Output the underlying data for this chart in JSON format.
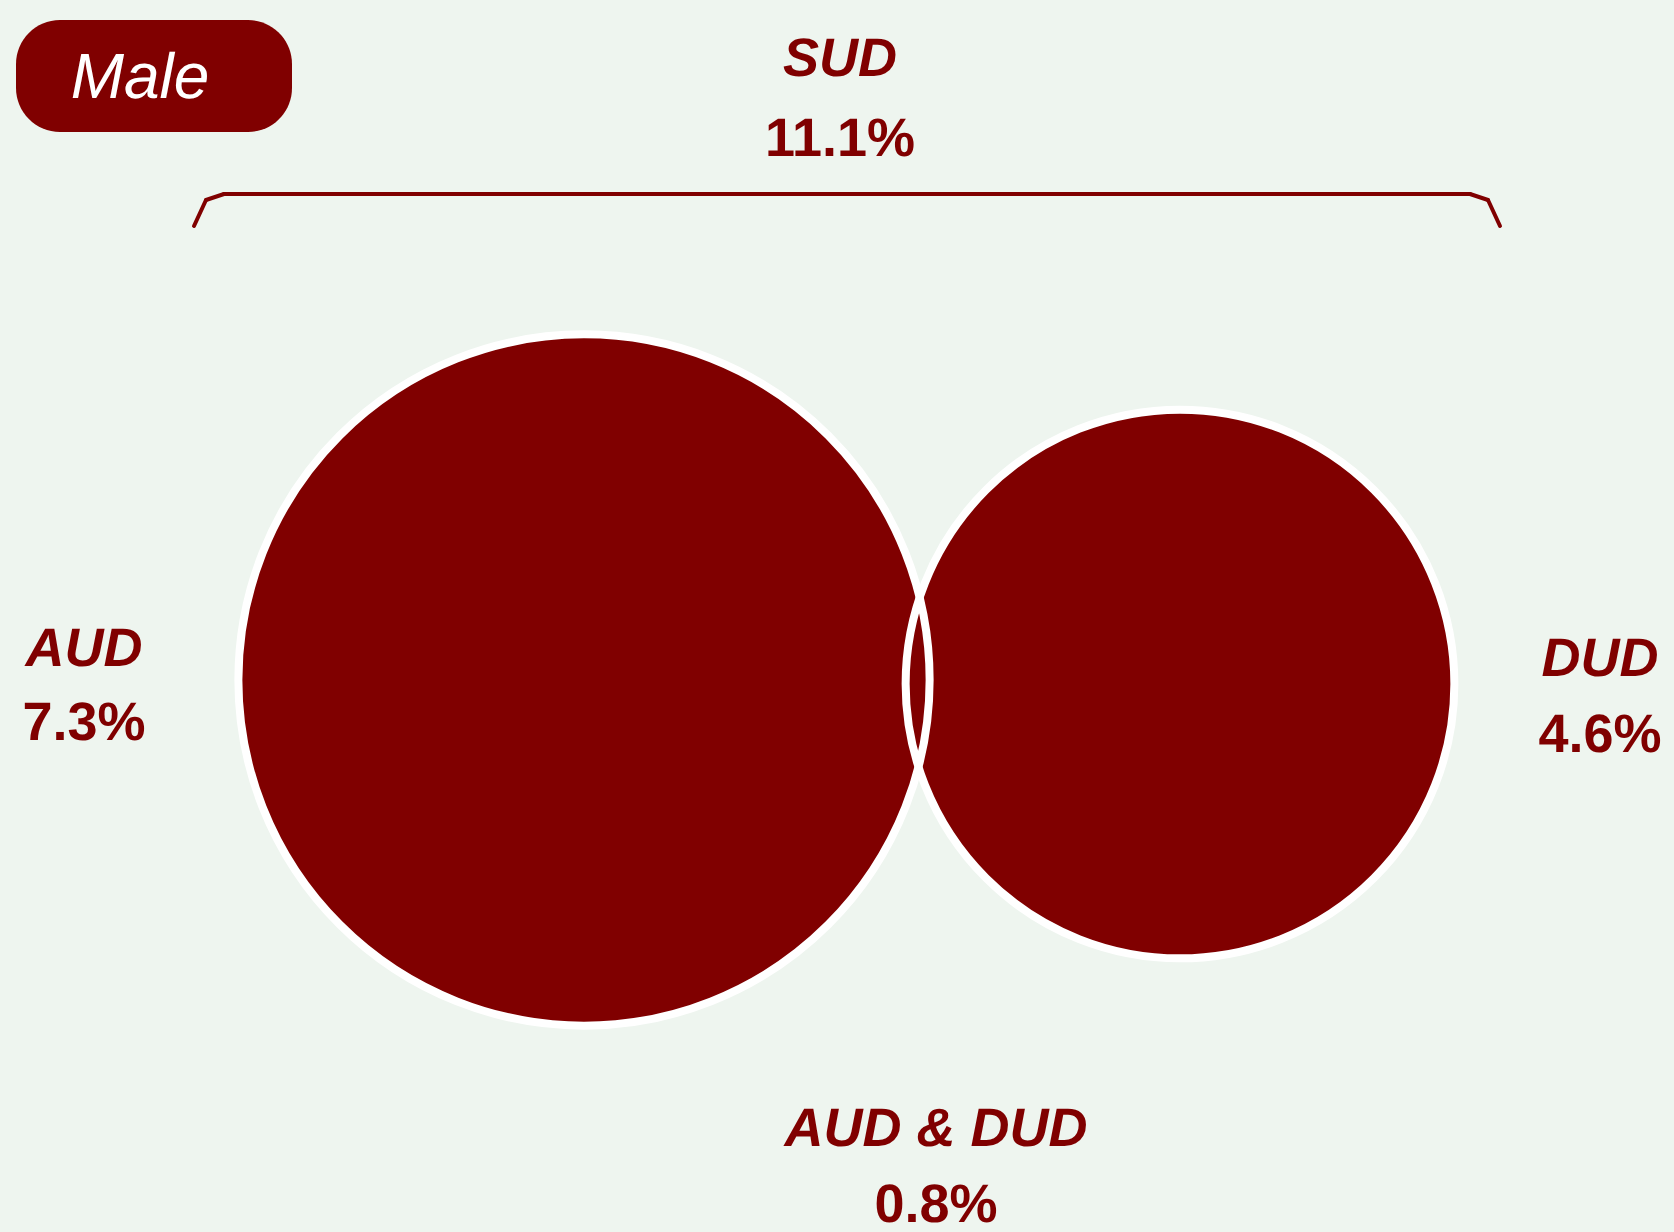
{
  "chart_data": {
    "type": "other",
    "title": "Male",
    "categories": [
      "AUD",
      "DUD",
      "AUD & DUD",
      "SUD"
    ],
    "values": [
      7.3,
      4.6,
      0.8,
      11.1
    ],
    "value_labels": [
      "7.3%",
      "4.6%",
      "0.8%",
      "11.1%"
    ],
    "color": "#800000"
  }
}
